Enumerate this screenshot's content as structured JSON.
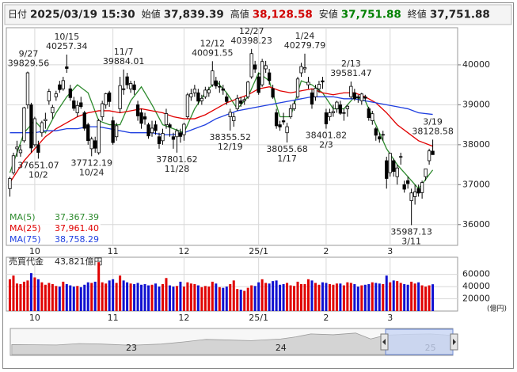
{
  "header": {
    "items": [
      {
        "label": "日付",
        "value": "2025/03/19 15:30"
      },
      {
        "label": "始値",
        "value": "37,839.39"
      },
      {
        "label": "高値",
        "value": "38,128.58",
        "color": "#d00000"
      },
      {
        "label": "安値",
        "value": "37,751.88",
        "color": "#008000"
      },
      {
        "label": "終値",
        "value": "37,751.88"
      }
    ]
  },
  "chart_data": {
    "type": "candlestick",
    "up_color": "#ffffff",
    "down_color": "#000000",
    "ohlc": [
      [
        36900,
        37200,
        36700,
        37155
      ],
      [
        37300,
        37800,
        37250,
        37724
      ],
      [
        37900,
        38100,
        37700,
        37940
      ],
      [
        37800,
        38000,
        37700,
        37870
      ],
      [
        38100,
        38950,
        38050,
        38926
      ],
      [
        39000,
        39829.56,
        38900,
        39800
      ],
      [
        39000,
        39050,
        37800,
        37919
      ],
      [
        38000,
        38700,
        37950,
        38651
      ],
      [
        38000,
        38100,
        37651.07,
        37808
      ],
      [
        38300,
        38600,
        38200,
        38552
      ],
      [
        38600,
        38800,
        38400,
        38635
      ],
      [
        39100,
        39400,
        39000,
        39332
      ],
      [
        38800,
        39000,
        38650,
        38937
      ],
      [
        39200,
        39350,
        39100,
        39277
      ],
      [
        39500,
        39600,
        39300,
        39380
      ],
      [
        39400,
        39700,
        39350,
        39605
      ],
      [
        39950,
        40257.34,
        39800,
        39910
      ],
      [
        39400,
        39500,
        39100,
        39180
      ],
      [
        39100,
        39200,
        38850,
        38911
      ],
      [
        38800,
        39100,
        38700,
        38981
      ],
      [
        39050,
        39200,
        38900,
        38954
      ],
      [
        38800,
        38850,
        38350,
        38411
      ],
      [
        38500,
        38550,
        38000,
        38104
      ],
      [
        37900,
        38200,
        37712.19,
        38143
      ],
      [
        38100,
        38200,
        37800,
        37913
      ],
      [
        37800,
        38650,
        37750,
        38605
      ],
      [
        38700,
        39100,
        38600,
        39027
      ],
      [
        39000,
        39300,
        38900,
        39277
      ],
      [
        39300,
        39350,
        38950,
        39081
      ],
      [
        38600,
        38700,
        38000,
        38053
      ],
      [
        38200,
        38550,
        38100,
        38474
      ],
      [
        38900,
        39700,
        38800,
        39480
      ],
      [
        39400,
        39884.01,
        39250,
        39381
      ],
      [
        39700,
        39800,
        39400,
        39500
      ],
      [
        39400,
        39600,
        39300,
        39533
      ],
      [
        39500,
        39600,
        39250,
        39376
      ],
      [
        39000,
        39100,
        38600,
        38721
      ],
      [
        38800,
        38900,
        38400,
        38535
      ],
      [
        38700,
        38800,
        38500,
        38642
      ],
      [
        38500,
        38550,
        38150,
        38220
      ],
      [
        38300,
        38600,
        38200,
        38414
      ],
      [
        38500,
        38600,
        38250,
        38352
      ],
      [
        38200,
        38300,
        37900,
        38026
      ],
      [
        38100,
        38400,
        38000,
        38283
      ],
      [
        38500,
        38900,
        38400,
        38780
      ],
      [
        38500,
        38550,
        38200,
        38442
      ],
      [
        38200,
        38300,
        37900,
        38134
      ],
      [
        38200,
        38400,
        37801.62,
        38349
      ],
      [
        38300,
        38400,
        38050,
        38208
      ],
      [
        38250,
        38550,
        38100,
        38513
      ],
      [
        38700,
        39300,
        38650,
        39248
      ],
      [
        39200,
        39400,
        39100,
        39276
      ],
      [
        39300,
        39500,
        39200,
        39395
      ],
      [
        39300,
        39400,
        39000,
        39091
      ],
      [
        39100,
        39250,
        39000,
        39160
      ],
      [
        39200,
        39450,
        39150,
        39367
      ],
      [
        39300,
        39450,
        39200,
        39372
      ],
      [
        39500,
        40091.55,
        39450,
        39849
      ],
      [
        39600,
        39700,
        39400,
        39470
      ],
      [
        39450,
        39600,
        39300,
        39457
      ],
      [
        39400,
        39500,
        39250,
        39364
      ],
      [
        39200,
        39300,
        39000,
        39081
      ],
      [
        38700,
        38900,
        38355.52,
        38813
      ],
      [
        38600,
        38800,
        38450,
        38701
      ],
      [
        38900,
        39250,
        38850,
        39161
      ],
      [
        39100,
        39200,
        38950,
        39036
      ],
      [
        39100,
        39200,
        39000,
        39130
      ],
      [
        39200,
        39600,
        39150,
        39568
      ],
      [
        39700,
        40398.23,
        39650,
        40281
      ],
      [
        40000,
        40100,
        39800,
        39894
      ],
      [
        39700,
        39800,
        39250,
        39307
      ],
      [
        39500,
        40150,
        39450,
        40083
      ],
      [
        39900,
        40100,
        39800,
        39981
      ],
      [
        39800,
        39900,
        39500,
        39605
      ],
      [
        39400,
        39500,
        39150,
        39190
      ],
      [
        38800,
        38900,
        38400,
        38474
      ],
      [
        38500,
        38600,
        38350,
        38444
      ],
      [
        38600,
        38800,
        38500,
        38572
      ],
      [
        38300,
        38550,
        38055.68,
        38451
      ],
      [
        38700,
        39000,
        38650,
        38902
      ],
      [
        38900,
        39100,
        38850,
        39027
      ],
      [
        39200,
        39700,
        39150,
        39646
      ],
      [
        39800,
        40050,
        39700,
        39958
      ],
      [
        39900,
        40279.79,
        39800,
        39931
      ],
      [
        39500,
        39700,
        39400,
        39565
      ],
      [
        39300,
        39400,
        38900,
        39016
      ],
      [
        39200,
        39500,
        39100,
        39414
      ],
      [
        39400,
        39600,
        39300,
        39513
      ],
      [
        39600,
        39700,
        39400,
        39572
      ],
      [
        38800,
        38900,
        38401.82,
        38520
      ],
      [
        38700,
        38900,
        38600,
        38798
      ],
      [
        38800,
        39000,
        38700,
        38831
      ],
      [
        38900,
        39100,
        38800,
        39066
      ],
      [
        39000,
        39100,
        38750,
        38787
      ],
      [
        38800,
        38900,
        38600,
        38801
      ],
      [
        38900,
        39000,
        38700,
        38963
      ],
      [
        39200,
        39581.47,
        39150,
        39461
      ],
      [
        39300,
        39400,
        39100,
        39149
      ],
      [
        39200,
        39250,
        39050,
        39174
      ],
      [
        39100,
        39300,
        39000,
        39270
      ],
      [
        39200,
        39250,
        39100,
        39164
      ],
      [
        38900,
        38950,
        38600,
        38678
      ],
      [
        38600,
        38850,
        38500,
        38776
      ],
      [
        38400,
        38450,
        38100,
        38237
      ],
      [
        38200,
        38300,
        38050,
        38142
      ],
      [
        38250,
        38350,
        38100,
        38256
      ],
      [
        37600,
        37700,
        36900,
        37155
      ],
      [
        37300,
        37800,
        37200,
        37785
      ],
      [
        37600,
        37650,
        37200,
        37331
      ],
      [
        37200,
        37500,
        37000,
        37418
      ],
      [
        37700,
        37800,
        37500,
        37704
      ],
      [
        37000,
        37100,
        36800,
        36887
      ],
      [
        37100,
        37200,
        36900,
        37028
      ],
      [
        36600,
        36900,
        35987.13,
        36793
      ],
      [
        36700,
        37000,
        36500,
        36819
      ],
      [
        36900,
        37000,
        36700,
        36790
      ],
      [
        36800,
        37100,
        36650,
        37053
      ],
      [
        37200,
        37400,
        37100,
        37396
      ],
      [
        37600,
        37900,
        37500,
        37845
      ],
      [
        37839.39,
        38128.58,
        37751.88,
        37751.88
      ]
    ],
    "x": [
      0,
      4,
      7,
      10,
      13,
      16,
      19,
      22,
      25,
      28,
      31,
      34,
      37,
      40,
      43,
      46,
      49,
      52,
      55,
      58,
      61,
      64,
      67,
      70,
      73,
      76,
      79,
      82,
      85,
      88,
      91,
      94,
      97,
      100,
      103,
      106,
      109,
      112,
      115,
      119
    ],
    "series": [
      {
        "name": "MA(5)",
        "color": "#2e8b2e",
        "values": [
          37300,
          38300,
          38600,
          38300,
          38800,
          39200,
          39500,
          39300,
          38600,
          38500,
          38500,
          39100,
          39450,
          39000,
          38500,
          38400,
          38300,
          38900,
          39300,
          39600,
          39300,
          38900,
          39200,
          39800,
          39600,
          38700,
          38700,
          39600,
          39500,
          39300,
          38900,
          38900,
          39200,
          39100,
          38500,
          37900,
          37500,
          37200,
          36900,
          37367.39
        ],
        "value_labels": [
          null,
          null,
          null,
          null,
          null,
          null,
          null,
          null,
          null,
          null,
          null,
          null,
          null,
          null,
          null,
          null,
          null,
          null,
          null,
          null,
          null,
          null,
          null,
          null,
          null,
          null,
          null,
          null,
          null,
          null,
          null,
          null,
          null,
          null,
          null,
          null,
          null,
          null,
          null,
          "37,367.39"
        ]
      },
      {
        "name": "MA(25)",
        "color": "#e00000",
        "values": [
          37050,
          37600,
          37900,
          38200,
          38400,
          38550,
          38700,
          38800,
          38850,
          38850,
          38800,
          38850,
          38900,
          38850,
          38800,
          38700,
          38650,
          38650,
          38750,
          38900,
          39050,
          39150,
          39250,
          39400,
          39450,
          39350,
          39300,
          39350,
          39400,
          39300,
          39250,
          39300,
          39300,
          39200,
          39050,
          38800,
          38500,
          38300,
          38100,
          37961.4
        ],
        "value_labels": [
          null,
          null,
          null,
          null,
          null,
          null,
          null,
          null,
          null,
          null,
          null,
          null,
          null,
          null,
          null,
          null,
          null,
          null,
          null,
          null,
          null,
          null,
          null,
          null,
          null,
          null,
          null,
          null,
          null,
          null,
          null,
          null,
          null,
          null,
          null,
          null,
          null,
          null,
          null,
          "37,961.40"
        ]
      },
      {
        "name": "MA(75)",
        "color": "#1f3fe0",
        "values": [
          38300,
          38300,
          38300,
          38350,
          38350,
          38400,
          38400,
          38450,
          38450,
          38400,
          38350,
          38300,
          38300,
          38300,
          38250,
          38250,
          38300,
          38400,
          38500,
          38650,
          38750,
          38850,
          38900,
          38950,
          39000,
          39050,
          39100,
          39150,
          39200,
          39200,
          39200,
          39150,
          39150,
          39100,
          39050,
          39000,
          38950,
          38900,
          38800,
          38758.29
        ],
        "value_labels": [
          null,
          null,
          null,
          null,
          null,
          null,
          null,
          null,
          null,
          null,
          null,
          null,
          null,
          null,
          null,
          null,
          null,
          null,
          null,
          null,
          null,
          null,
          null,
          null,
          null,
          null,
          null,
          null,
          null,
          null,
          null,
          null,
          null,
          null,
          null,
          null,
          null,
          null,
          null,
          "38,758.29"
        ]
      }
    ],
    "xlim": [
      -1,
      126
    ],
    "xticks": [
      {
        "value": 7,
        "label": "10"
      },
      {
        "value": 29,
        "label": "11"
      },
      {
        "value": 49,
        "label": "12"
      },
      {
        "value": 70,
        "label": "25/1"
      },
      {
        "value": 89,
        "label": "2"
      },
      {
        "value": 107,
        "label": "3"
      }
    ],
    "ylim": [
      35480,
      40930
    ],
    "yticks": [
      36000,
      37000,
      38000,
      39000,
      40000
    ],
    "grid": true,
    "annotations": [
      {
        "date": "9/27",
        "value": 39829.56
      },
      {
        "date": "10/2",
        "value": 37651.07
      },
      {
        "date": "10/15",
        "value": 40257.34
      },
      {
        "date": "10/24",
        "value": 37712.19
      },
      {
        "date": "11/7",
        "value": 39884.01
      },
      {
        "date": "11/28",
        "value": 37801.62
      },
      {
        "date": "12/12",
        "value": 40091.55
      },
      {
        "date": "12/19",
        "value": 38355.52
      },
      {
        "date": "12/27",
        "value": 40398.23
      },
      {
        "date": "1/17",
        "value": 38055.68
      },
      {
        "date": "1/24",
        "value": 40279.79
      },
      {
        "date": "2/3",
        "value": 38401.82
      },
      {
        "date": "2/13",
        "value": 39581.47
      },
      {
        "date": "3/11",
        "value": 35987.13
      },
      {
        "date": "3/19",
        "value": 38128.58
      }
    ],
    "volume": {
      "title": "売買代金",
      "summary": "43,821億円",
      "unit": "(億円)",
      "up_color": "#e00000",
      "down_color": "#1010d0",
      "values": [
        52000,
        58000,
        45000,
        44000,
        48000,
        50000,
        62000,
        55000,
        52000,
        47000,
        43000,
        46000,
        44000,
        41000,
        40000,
        48000,
        44000,
        42000,
        40000,
        41000,
        39000,
        43000,
        47000,
        46000,
        48000,
        80000,
        47000,
        45000,
        50000,
        52000,
        46000,
        58000,
        50000,
        47000,
        45000,
        44000,
        46000,
        43000,
        44000,
        42000,
        43000,
        45000,
        40000,
        44000,
        54000,
        42000,
        40000,
        41000,
        48000,
        40000,
        47000,
        45000,
        44000,
        42000,
        39000,
        41000,
        40000,
        48000,
        45000,
        39000,
        38000,
        40000,
        44000,
        50000,
        36000,
        35000,
        33000,
        38000,
        42000,
        41000,
        47000,
        52000,
        46000,
        45000,
        49000,
        50000,
        43000,
        44000,
        46000,
        42000,
        41000,
        48000,
        44000,
        44000,
        52000,
        50000,
        46000,
        43000,
        47000,
        46000,
        44000,
        43000,
        45000,
        45000,
        42000,
        47000,
        46000,
        44000,
        40000,
        42000,
        43000,
        44000,
        47000,
        46000,
        45000,
        44000,
        58000,
        47000,
        50000,
        49000,
        46000,
        44000,
        43000,
        48000,
        45000,
        47000,
        42000,
        40000,
        42000,
        43821
      ],
      "ylim": [
        0,
        88000
      ],
      "yticks": [
        20000,
        40000,
        60000
      ]
    },
    "navigator": {
      "x": [
        2022.2,
        2022.35,
        2022.5,
        2022.65,
        2022.8,
        2023.0,
        2023.2,
        2023.35,
        2023.5,
        2023.65,
        2023.8,
        2024.0,
        2024.1,
        2024.2,
        2024.35,
        2024.5,
        2024.6,
        2024.7,
        2024.85,
        2025.0,
        2025.14
      ],
      "values": [
        26800,
        26600,
        26400,
        28000,
        27500,
        26000,
        27500,
        30000,
        33000,
        32300,
        31500,
        33500,
        36000,
        39500,
        38500,
        40500,
        33500,
        38000,
        39000,
        39500,
        37751.88
      ],
      "xlim": [
        2022.19,
        2025.15
      ],
      "ylim": [
        15000,
        45000
      ],
      "xticks": [
        {
          "value": 2023,
          "label": "23"
        },
        {
          "value": 2024,
          "label": "24"
        },
        {
          "value": 2025,
          "label": "25"
        }
      ]
    }
  }
}
